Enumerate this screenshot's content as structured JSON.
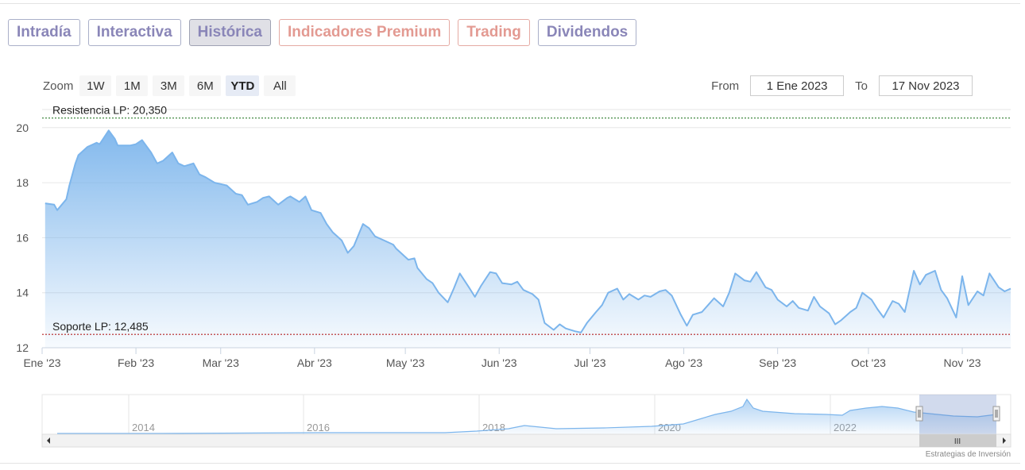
{
  "tabs": [
    {
      "label": "Intradía",
      "style": "normal"
    },
    {
      "label": "Interactiva",
      "style": "normal"
    },
    {
      "label": "Histórica",
      "style": "active"
    },
    {
      "label": "Indicadores Premium",
      "style": "warm"
    },
    {
      "label": "Trading",
      "style": "warm"
    },
    {
      "label": "Dividendos",
      "style": "normal"
    }
  ],
  "zoom": {
    "label": "Zoom",
    "buttons": [
      "1W",
      "1M",
      "3M",
      "6M",
      "YTD",
      "All"
    ],
    "selected": "YTD"
  },
  "range": {
    "from_label": "From",
    "from_value": "1 Ene 2023",
    "to_label": "To",
    "to_value": "17 Nov 2023"
  },
  "credit": "Estrategias de Inversión",
  "colors": {
    "line": "#7cb5ec",
    "area_top": "#7cb5ec",
    "resistance": "#2e7d2e",
    "support": "#b22222",
    "tab_text": "#8a86b8",
    "tab_warm": "#e39a92"
  },
  "chart_data": {
    "type": "area",
    "ylim": [
      12,
      20.6
    ],
    "yticks": [
      12,
      14,
      16,
      18,
      20
    ],
    "x_start": "2023-01-01",
    "x_end": "2023-11-17",
    "xtick_labels": [
      "Ene '23",
      "Feb '23",
      "Mar '23",
      "Abr '23",
      "May '23",
      "Jun '23",
      "Jul '23",
      "Ago '23",
      "Sep '23",
      "Oct '23",
      "Nov '23"
    ],
    "xtick_dates": [
      "2023-01-01",
      "2023-02-01",
      "2023-03-01",
      "2023-04-01",
      "2023-05-01",
      "2023-06-01",
      "2023-07-01",
      "2023-08-01",
      "2023-09-01",
      "2023-10-01",
      "2023-11-01"
    ],
    "plotlines": [
      {
        "label": "Resistencia LP: 20,350",
        "value": 20.35,
        "color": "#2e7d2e"
      },
      {
        "label": "Soporte LP: 12,485",
        "value": 12.485,
        "color": "#b22222"
      }
    ],
    "series": [
      {
        "name": "",
        "points": [
          [
            "2023-01-02",
            17.25
          ],
          [
            "2023-01-05",
            17.2
          ],
          [
            "2023-01-06",
            17.0
          ],
          [
            "2023-01-09",
            17.4
          ],
          [
            "2023-01-10",
            17.9
          ],
          [
            "2023-01-12",
            18.7
          ],
          [
            "2023-01-13",
            19.0
          ],
          [
            "2023-01-16",
            19.3
          ],
          [
            "2023-01-19",
            19.45
          ],
          [
            "2023-01-20",
            19.4
          ],
          [
            "2023-01-23",
            19.9
          ],
          [
            "2023-01-25",
            19.6
          ],
          [
            "2023-01-26",
            19.35
          ],
          [
            "2023-01-30",
            19.35
          ],
          [
            "2023-02-01",
            19.4
          ],
          [
            "2023-02-03",
            19.55
          ],
          [
            "2023-02-06",
            19.1
          ],
          [
            "2023-02-08",
            18.7
          ],
          [
            "2023-02-10",
            18.8
          ],
          [
            "2023-02-13",
            19.1
          ],
          [
            "2023-02-15",
            18.7
          ],
          [
            "2023-02-17",
            18.6
          ],
          [
            "2023-02-20",
            18.7
          ],
          [
            "2023-02-22",
            18.3
          ],
          [
            "2023-02-24",
            18.2
          ],
          [
            "2023-02-27",
            18.0
          ],
          [
            "2023-03-01",
            17.95
          ],
          [
            "2023-03-03",
            17.9
          ],
          [
            "2023-03-06",
            17.6
          ],
          [
            "2023-03-08",
            17.55
          ],
          [
            "2023-03-10",
            17.2
          ],
          [
            "2023-03-13",
            17.3
          ],
          [
            "2023-03-15",
            17.45
          ],
          [
            "2023-03-17",
            17.5
          ],
          [
            "2023-03-20",
            17.2
          ],
          [
            "2023-03-23",
            17.45
          ],
          [
            "2023-03-24",
            17.5
          ],
          [
            "2023-03-27",
            17.3
          ],
          [
            "2023-03-29",
            17.5
          ],
          [
            "2023-03-31",
            17.0
          ],
          [
            "2023-04-03",
            16.9
          ],
          [
            "2023-04-05",
            16.5
          ],
          [
            "2023-04-07",
            16.2
          ],
          [
            "2023-04-10",
            15.9
          ],
          [
            "2023-04-12",
            15.45
          ],
          [
            "2023-04-14",
            15.7
          ],
          [
            "2023-04-17",
            16.5
          ],
          [
            "2023-04-19",
            16.35
          ],
          [
            "2023-04-21",
            16.05
          ],
          [
            "2023-04-24",
            15.9
          ],
          [
            "2023-04-27",
            15.75
          ],
          [
            "2023-04-28",
            15.6
          ],
          [
            "2023-05-02",
            15.2
          ],
          [
            "2023-05-04",
            15.25
          ],
          [
            "2023-05-05",
            14.9
          ],
          [
            "2023-05-08",
            14.5
          ],
          [
            "2023-05-10",
            14.35
          ],
          [
            "2023-05-12",
            14.0
          ],
          [
            "2023-05-15",
            13.65
          ],
          [
            "2023-05-17",
            14.15
          ],
          [
            "2023-05-19",
            14.7
          ],
          [
            "2023-05-22",
            14.2
          ],
          [
            "2023-05-24",
            13.85
          ],
          [
            "2023-05-26",
            14.25
          ],
          [
            "2023-05-29",
            14.75
          ],
          [
            "2023-05-31",
            14.7
          ],
          [
            "2023-06-02",
            14.35
          ],
          [
            "2023-06-05",
            14.3
          ],
          [
            "2023-06-07",
            14.4
          ],
          [
            "2023-06-09",
            14.1
          ],
          [
            "2023-06-12",
            13.95
          ],
          [
            "2023-06-14",
            13.75
          ],
          [
            "2023-06-16",
            12.9
          ],
          [
            "2023-06-19",
            12.65
          ],
          [
            "2023-06-21",
            12.85
          ],
          [
            "2023-06-23",
            12.7
          ],
          [
            "2023-06-26",
            12.6
          ],
          [
            "2023-06-28",
            12.55
          ],
          [
            "2023-06-30",
            12.9
          ],
          [
            "2023-07-03",
            13.3
          ],
          [
            "2023-07-05",
            13.55
          ],
          [
            "2023-07-07",
            14.0
          ],
          [
            "2023-07-10",
            14.15
          ],
          [
            "2023-07-12",
            13.75
          ],
          [
            "2023-07-14",
            13.95
          ],
          [
            "2023-07-17",
            13.75
          ],
          [
            "2023-07-19",
            13.9
          ],
          [
            "2023-07-21",
            13.85
          ],
          [
            "2023-07-24",
            14.05
          ],
          [
            "2023-07-26",
            14.1
          ],
          [
            "2023-07-28",
            13.9
          ],
          [
            "2023-07-31",
            13.2
          ],
          [
            "2023-08-02",
            12.8
          ],
          [
            "2023-08-04",
            13.2
          ],
          [
            "2023-08-07",
            13.3
          ],
          [
            "2023-08-09",
            13.55
          ],
          [
            "2023-08-11",
            13.8
          ],
          [
            "2023-08-14",
            13.5
          ],
          [
            "2023-08-16",
            14.0
          ],
          [
            "2023-08-18",
            14.7
          ],
          [
            "2023-08-21",
            14.45
          ],
          [
            "2023-08-23",
            14.4
          ],
          [
            "2023-08-25",
            14.75
          ],
          [
            "2023-08-28",
            14.2
          ],
          [
            "2023-08-30",
            14.1
          ],
          [
            "2023-09-01",
            13.75
          ],
          [
            "2023-09-04",
            13.5
          ],
          [
            "2023-09-06",
            13.7
          ],
          [
            "2023-09-08",
            13.45
          ],
          [
            "2023-09-11",
            13.35
          ],
          [
            "2023-09-13",
            13.85
          ],
          [
            "2023-09-15",
            13.5
          ],
          [
            "2023-09-18",
            13.25
          ],
          [
            "2023-09-20",
            12.85
          ],
          [
            "2023-09-22",
            13.0
          ],
          [
            "2023-09-25",
            13.3
          ],
          [
            "2023-09-27",
            13.45
          ],
          [
            "2023-09-29",
            14.0
          ],
          [
            "2023-10-02",
            13.75
          ],
          [
            "2023-10-04",
            13.4
          ],
          [
            "2023-10-06",
            13.1
          ],
          [
            "2023-10-09",
            13.7
          ],
          [
            "2023-10-11",
            13.6
          ],
          [
            "2023-10-13",
            13.3
          ],
          [
            "2023-10-16",
            14.8
          ],
          [
            "2023-10-18",
            14.3
          ],
          [
            "2023-10-20",
            14.65
          ],
          [
            "2023-10-23",
            14.8
          ],
          [
            "2023-10-25",
            14.1
          ],
          [
            "2023-10-27",
            13.8
          ],
          [
            "2023-10-30",
            13.1
          ],
          [
            "2023-11-01",
            14.6
          ],
          [
            "2023-11-03",
            13.55
          ],
          [
            "2023-11-06",
            14.05
          ],
          [
            "2023-11-08",
            13.9
          ],
          [
            "2023-11-10",
            14.7
          ],
          [
            "2023-11-13",
            14.2
          ],
          [
            "2023-11-15",
            14.05
          ],
          [
            "2023-11-17",
            14.15
          ]
        ]
      }
    ],
    "navigator": {
      "tick_labels": [
        "2014",
        "2016",
        "2018",
        "2020",
        "2022"
      ],
      "scrollbar_grip": "III"
    }
  }
}
